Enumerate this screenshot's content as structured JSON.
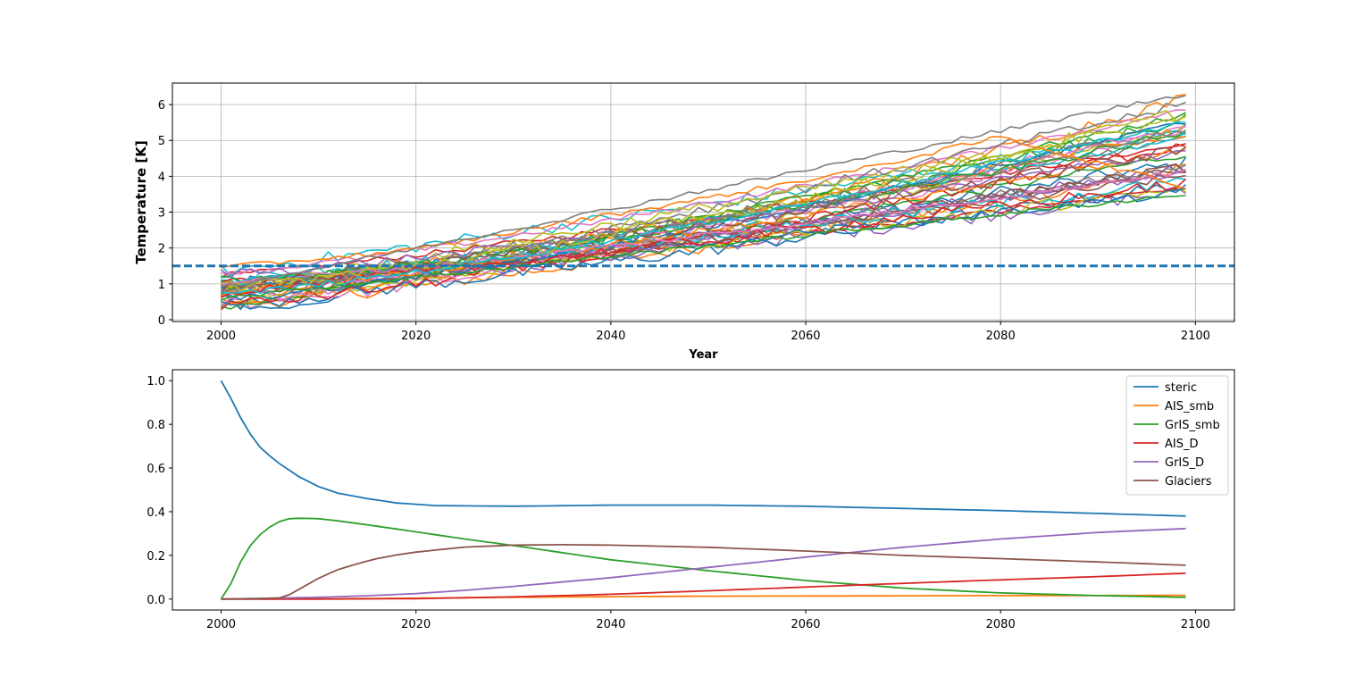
{
  "chart_data": [
    {
      "type": "line",
      "title": "",
      "xlabel": "Year",
      "ylabel": "Temperature [K]",
      "xlim": [
        1995,
        2104
      ],
      "ylim": [
        -0.05,
        6.6
      ],
      "xticks": [
        2000,
        2020,
        2040,
        2060,
        2080,
        2100
      ],
      "yticks": [
        0,
        1,
        2,
        3,
        4,
        5,
        6
      ],
      "grid": true,
      "threshold": {
        "value": 1.5,
        "style": "dashed",
        "color": "#1f77b4"
      },
      "ensemble": {
        "count": 40,
        "x_start": 2000,
        "x_end": 2099,
        "start_range": [
          0.3,
          1.4
        ],
        "end_range": [
          3.5,
          6.3
        ],
        "example_series": [
          {
            "x": [
              2000,
              2003,
              2006,
              2009,
              2012
            ],
            "values": [
              0.45,
              0.35,
              0.3,
              0.45,
              0.6
            ],
            "color": "#1f77b4"
          },
          {
            "x": [
              2000,
              2020,
              2035,
              2050,
              2065,
              2080,
              2099
            ],
            "values": [
              1.45,
              1.95,
              2.7,
              3.4,
              4.15,
              5.1,
              3.7
            ],
            "color": "#ff7f0e"
          },
          {
            "x": [
              2000,
              2099
            ],
            "values": [
              0.9,
              6.3
            ],
            "color": "#7f7f7f"
          },
          {
            "x": [
              2000,
              2099
            ],
            "values": [
              0.6,
              3.5
            ],
            "color": "#2ca02c"
          }
        ]
      }
    },
    {
      "type": "line",
      "title": "",
      "xlabel": "",
      "ylabel": "",
      "xlim": [
        1995,
        2104
      ],
      "ylim": [
        -0.05,
        1.05
      ],
      "xticks": [
        2000,
        2020,
        2040,
        2060,
        2080,
        2100
      ],
      "yticks": [
        "0.0",
        "0.2",
        "0.4",
        "0.6",
        "0.8",
        "1.0"
      ],
      "grid": false,
      "legend": "top-right",
      "series": [
        {
          "name": "steric",
          "color": "#1f77b4",
          "x": [
            2000,
            2001,
            2002,
            2003,
            2004,
            2005,
            2006,
            2008,
            2010,
            2012,
            2015,
            2018,
            2022,
            2030,
            2040,
            2050,
            2060,
            2070,
            2080,
            2090,
            2099
          ],
          "values": [
            1.0,
            0.92,
            0.83,
            0.755,
            0.695,
            0.655,
            0.62,
            0.56,
            0.515,
            0.485,
            0.46,
            0.44,
            0.428,
            0.425,
            0.43,
            0.43,
            0.425,
            0.415,
            0.405,
            0.392,
            0.38
          ]
        },
        {
          "name": "AIS_smb",
          "color": "#ff7f0e",
          "x": [
            2000,
            2010,
            2020,
            2030,
            2040,
            2050,
            2060,
            2070,
            2080,
            2090,
            2099
          ],
          "values": [
            0.0,
            0.001,
            0.004,
            0.008,
            0.011,
            0.013,
            0.014,
            0.015,
            0.016,
            0.016,
            0.017
          ]
        },
        {
          "name": "GrIS_smb",
          "color": "#2ca02c",
          "x": [
            2000,
            2001,
            2002,
            2003,
            2004,
            2005,
            2006,
            2007,
            2008,
            2010,
            2012,
            2015,
            2020,
            2025,
            2030,
            2040,
            2050,
            2060,
            2070,
            2080,
            2090,
            2099
          ],
          "values": [
            0.0,
            0.07,
            0.17,
            0.245,
            0.295,
            0.33,
            0.355,
            0.368,
            0.37,
            0.368,
            0.358,
            0.34,
            0.308,
            0.275,
            0.245,
            0.18,
            0.13,
            0.085,
            0.05,
            0.028,
            0.016,
            0.008
          ]
        },
        {
          "name": "AIS_D",
          "color": "#d62728",
          "x": [
            2000,
            2010,
            2020,
            2030,
            2040,
            2050,
            2060,
            2070,
            2080,
            2090,
            2099
          ],
          "values": [
            0.0,
            0.0,
            0.002,
            0.01,
            0.022,
            0.038,
            0.055,
            0.072,
            0.088,
            0.103,
            0.118
          ]
        },
        {
          "name": "GrIS_D",
          "color": "#9467bd",
          "x": [
            2000,
            2005,
            2010,
            2015,
            2020,
            2025,
            2030,
            2040,
            2050,
            2060,
            2070,
            2080,
            2090,
            2099
          ],
          "values": [
            0.0,
            0.004,
            0.008,
            0.015,
            0.025,
            0.04,
            0.058,
            0.098,
            0.145,
            0.192,
            0.237,
            0.275,
            0.305,
            0.323
          ]
        },
        {
          "name": "Glaciers",
          "color": "#8c564b",
          "x": [
            2000,
            2004,
            2006,
            2007,
            2008,
            2009,
            2010,
            2012,
            2014,
            2016,
            2018,
            2020,
            2025,
            2030,
            2035,
            2040,
            2050,
            2060,
            2070,
            2080,
            2090,
            2099
          ],
          "values": [
            0.0,
            0.002,
            0.005,
            0.02,
            0.045,
            0.07,
            0.095,
            0.135,
            0.162,
            0.185,
            0.202,
            0.215,
            0.238,
            0.247,
            0.249,
            0.247,
            0.237,
            0.22,
            0.2,
            0.185,
            0.17,
            0.155
          ]
        }
      ]
    }
  ]
}
